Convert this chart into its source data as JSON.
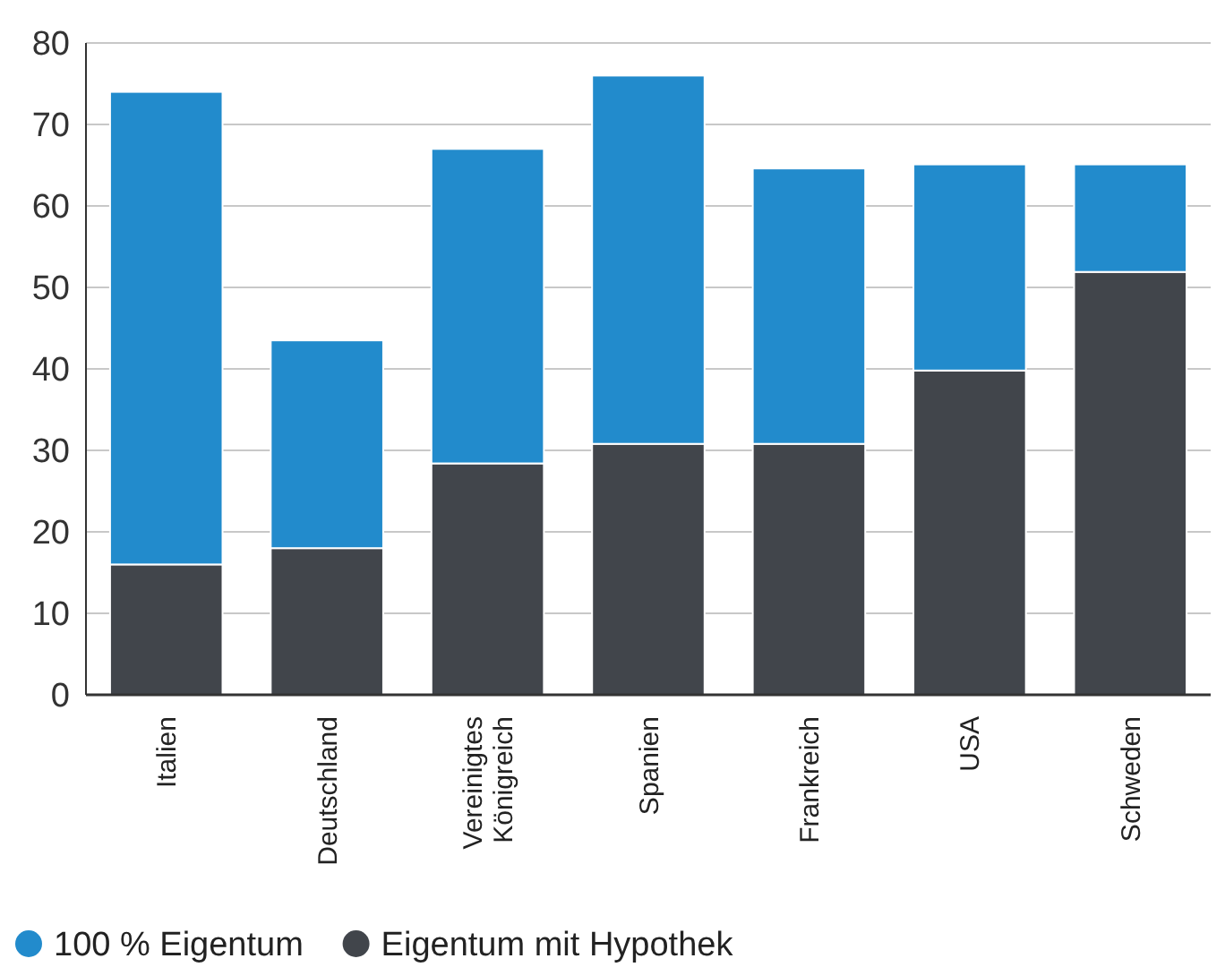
{
  "chart_data": {
    "type": "bar",
    "stacked": true,
    "categories": [
      "Italien",
      "Deutschland",
      "Vereinigtes Königreich",
      "Spanien",
      "Frankreich",
      "USA",
      "Schweden"
    ],
    "series": [
      {
        "name": "Eigentum mit Hypothek",
        "color": "#41454b",
        "values": [
          16,
          18,
          28.4,
          30.8,
          30.8,
          39.8,
          51.9
        ]
      },
      {
        "name": "100 % Eigentum",
        "color": "#228bcc",
        "values": [
          58,
          25.5,
          38.6,
          45.2,
          33.8,
          25.3,
          13.2
        ]
      }
    ],
    "ylim": [
      0,
      80
    ],
    "yticks": [
      0,
      10,
      20,
      30,
      40,
      50,
      60,
      70,
      80
    ],
    "grid": "y",
    "legend": "bottom left"
  }
}
